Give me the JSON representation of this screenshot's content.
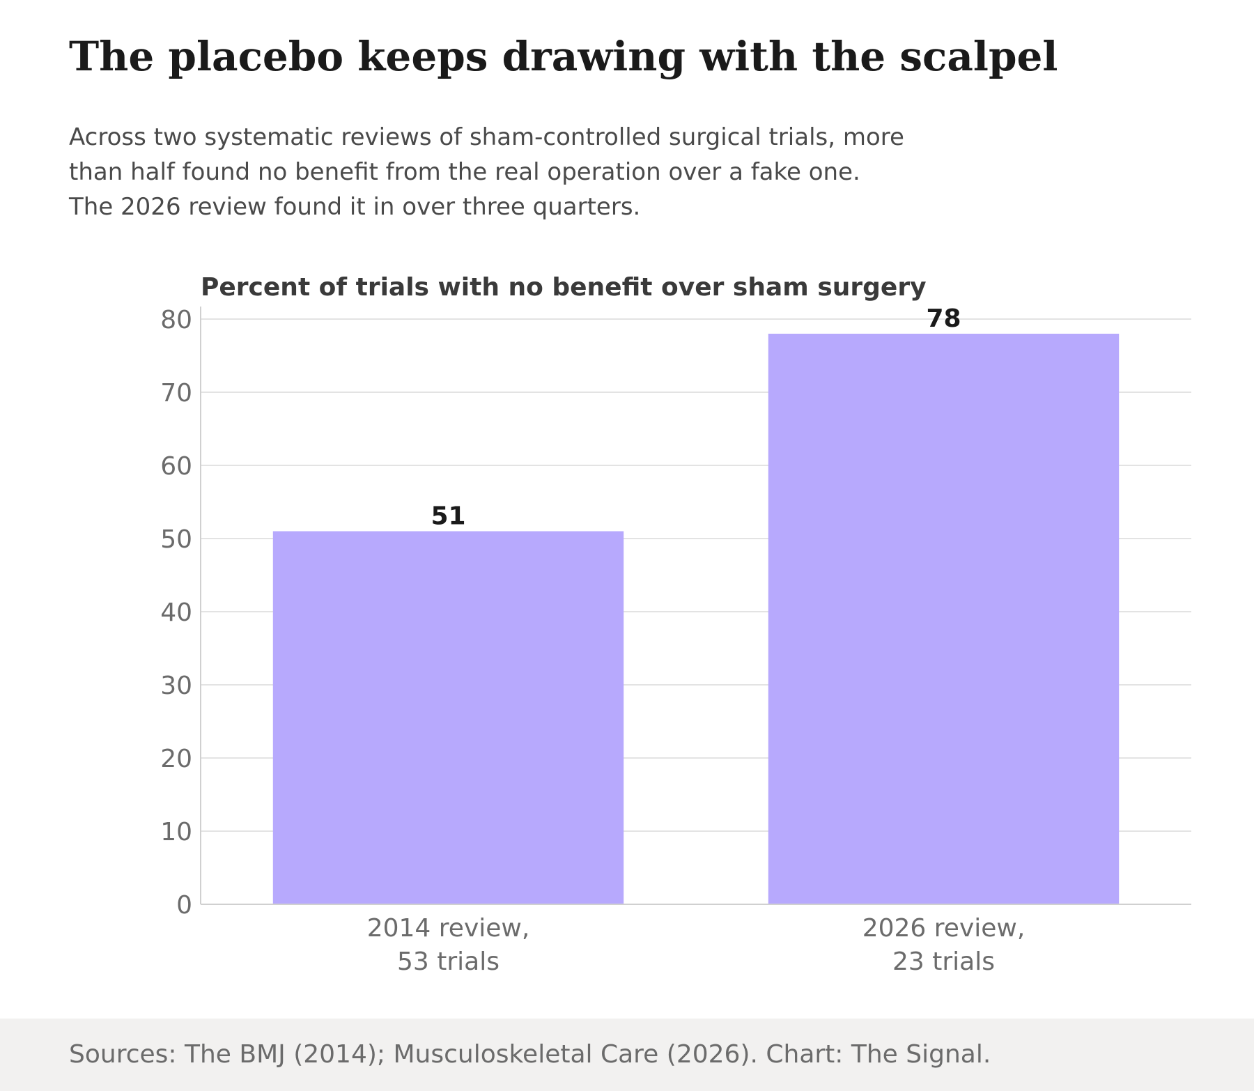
{
  "header": {
    "title": "The placebo keeps drawing with the scalpel",
    "subtitle_lines": [
      "Across two systematic reviews of sham-controlled surgical trials, more",
      "than half found no benefit from the real operation over a fake one.",
      "The 2026 review found it in over three quarters."
    ]
  },
  "chart_data": {
    "type": "bar",
    "title": "Percent of trials with no benefit over sham surgery",
    "xlabel": "",
    "ylabel": "",
    "categories": [
      [
        "2014 review,",
        "53 trials"
      ],
      [
        "2026 review,",
        "23 trials"
      ]
    ],
    "values": [
      51,
      78
    ],
    "data_labels": [
      "51",
      "78"
    ],
    "ylim": [
      0,
      80
    ],
    "yticks": [
      0,
      10,
      20,
      30,
      40,
      50,
      60,
      70,
      80
    ],
    "grid": true,
    "legend": "none",
    "colors": {
      "bar": "#b7a9fd",
      "grid": "#e3e3e3",
      "axis": "#d0d0d0",
      "tick_label": "#6b6b6b",
      "data_label": "#1a1a1a",
      "chart_title": "#3a3a3a"
    }
  },
  "footer": {
    "source": "Sources: The BMJ (2014); Musculoskeletal Care (2026). Chart: The Signal."
  }
}
